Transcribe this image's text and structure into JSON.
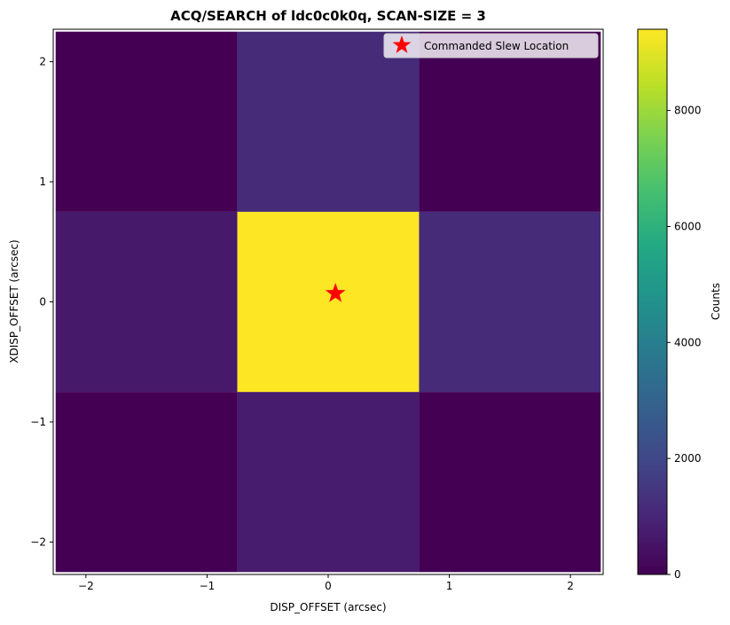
{
  "chart_data": {
    "type": "heatmap",
    "title": "ACQ/SEARCH of ldc0c0k0q, SCAN-SIZE = 3",
    "xlabel": "DISP_OFFSET (arcsec)",
    "ylabel": "XDISP_OFFSET (arcsec)",
    "colorbar_label": "Counts",
    "colormap": "viridis",
    "x_edges": [
      -2.25,
      -0.75,
      0.75,
      2.25
    ],
    "y_edges": [
      -2.25,
      -0.75,
      0.75,
      2.25
    ],
    "xlim": [
      -2.27,
      2.27
    ],
    "ylim": [
      -2.27,
      2.27
    ],
    "x_ticks": [
      -2,
      -1,
      0,
      1,
      2
    ],
    "y_ticks": [
      -2,
      -1,
      0,
      1,
      2
    ],
    "x_tick_labels": [
      "−2",
      "−1",
      "0",
      "1",
      "2"
    ],
    "y_tick_labels": [
      "−2",
      "−1",
      "0",
      "1",
      "2"
    ],
    "values_rows_bottom_to_top": [
      [
        0,
        700,
        0
      ],
      [
        650,
        9400,
        1150
      ],
      [
        0,
        1150,
        0
      ]
    ],
    "color_range": [
      0,
      9400
    ],
    "colorbar_ticks": [
      0,
      2000,
      4000,
      6000,
      8000
    ],
    "colorbar_tick_labels": [
      "0",
      "2000",
      "4000",
      "6000",
      "8000"
    ],
    "marker": {
      "label": "Commanded Slew Location",
      "x": 0.06,
      "y": 0.07,
      "color": "#ff0000",
      "shape": "star"
    },
    "legend_position": "upper right",
    "grid": false
  }
}
